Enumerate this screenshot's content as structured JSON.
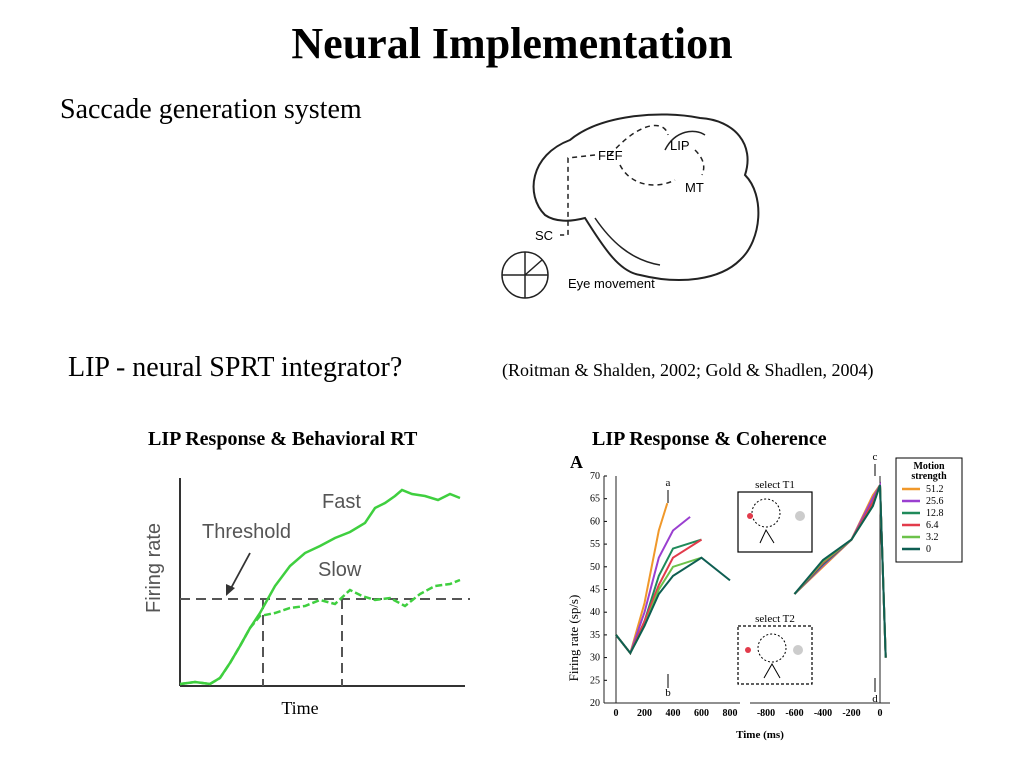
{
  "title": "Neural Implementation",
  "subtitle": "Saccade generation system",
  "section": "LIP - neural SPRT integrator?",
  "citation": "(Roitman & Shalden, 2002; Gold & Shadlen, 2004)",
  "brain_diagram": {
    "labels": [
      "FEF",
      "LIP",
      "MT",
      "SC"
    ],
    "eye_label": "Eye movement"
  },
  "left_figure": {
    "heading": "LIP Response & Behavioral RT",
    "ylabel": "Firing rate",
    "xlabel": "Time",
    "threshold_label": "Threshold",
    "fast_label": "Fast",
    "slow_label": "Slow"
  },
  "right_figure": {
    "heading": "LIP Response & Coherence",
    "panel_letter": "A",
    "ylabel": "Firing rate (sp/s)",
    "xlabel": "Time (ms)",
    "markers": [
      "a",
      "b",
      "c",
      "d"
    ],
    "inset_top": "select T1",
    "inset_bottom": "select T2",
    "legend_title_1": "Motion",
    "legend_title_2": "strength",
    "legend": [
      {
        "label": "51.2",
        "color": "#f0982a"
      },
      {
        "label": "25.6",
        "color": "#9a3fd0"
      },
      {
        "label": "12.8",
        "color": "#1f8a5a"
      },
      {
        "label": "6.4",
        "color": "#e23b4b"
      },
      {
        "label": "3.2",
        "color": "#6cc24a"
      },
      {
        "label": "0",
        "color": "#0e5e52"
      }
    ],
    "yticks": [
      "20",
      "25",
      "30",
      "35",
      "40",
      "45",
      "50",
      "55",
      "60",
      "65",
      "70"
    ],
    "xticks_left": [
      "0",
      "200",
      "400",
      "600",
      "800"
    ],
    "xticks_right": [
      "-800",
      "-600",
      "-400",
      "-200",
      "0"
    ]
  },
  "chart_data": {
    "type": "line",
    "ylabel": "Firing rate (sp/s)",
    "xlabel": "Time (ms)",
    "ylim": [
      20,
      70
    ],
    "series": [
      {
        "name": "51.2",
        "x": [
          0,
          100,
          200,
          300,
          360
        ],
        "y": [
          35,
          31,
          42,
          58,
          64
        ]
      },
      {
        "name": "25.6",
        "x": [
          0,
          100,
          200,
          300,
          400,
          520
        ],
        "y": [
          35,
          31,
          40,
          52,
          58,
          61
        ]
      },
      {
        "name": "12.8",
        "x": [
          0,
          100,
          200,
          300,
          400,
          600
        ],
        "y": [
          35,
          31,
          38,
          48,
          54,
          56
        ]
      },
      {
        "name": "6.4",
        "x": [
          0,
          100,
          200,
          300,
          400,
          600
        ],
        "y": [
          35,
          31,
          38,
          46,
          52,
          56
        ]
      },
      {
        "name": "3.2",
        "x": [
          0,
          100,
          200,
          300,
          400,
          600
        ],
        "y": [
          35,
          31,
          37,
          45,
          50,
          52
        ]
      },
      {
        "name": "0",
        "x": [
          0,
          100,
          200,
          300,
          400,
          600,
          800
        ],
        "y": [
          35,
          31,
          37,
          44,
          48,
          52,
          47
        ]
      }
    ]
  }
}
